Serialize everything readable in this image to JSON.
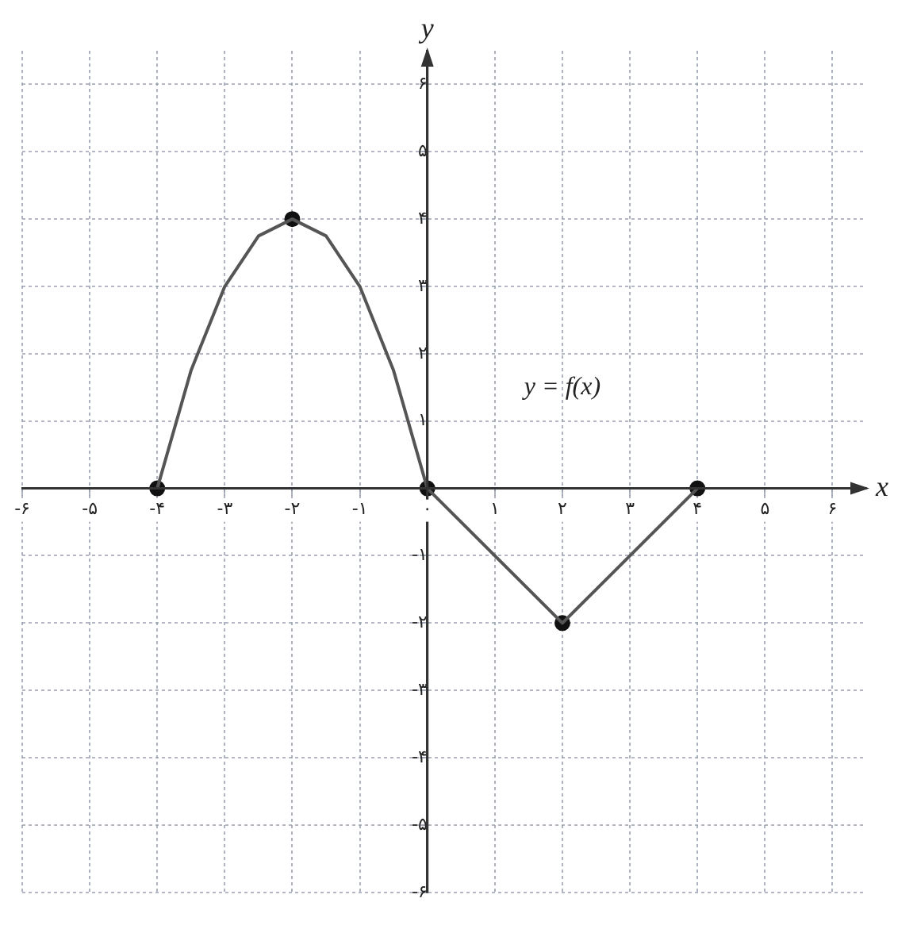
{
  "chart_data": {
    "type": "line",
    "xlabel": "x",
    "ylabel": "y",
    "xlim": [
      -6,
      6.5
    ],
    "ylim": [
      -6,
      6.5
    ],
    "xticks": [
      {
        "value": -6,
        "label": "-۶"
      },
      {
        "value": -5,
        "label": "-۵"
      },
      {
        "value": -4,
        "label": "-۴"
      },
      {
        "value": -3,
        "label": "-۳"
      },
      {
        "value": -2,
        "label": "-۲"
      },
      {
        "value": -1,
        "label": "-۱"
      },
      {
        "value": 0,
        "label": "۰"
      },
      {
        "value": 1,
        "label": "۱"
      },
      {
        "value": 2,
        "label": "۲"
      },
      {
        "value": 3,
        "label": "۳"
      },
      {
        "value": 4,
        "label": "۴"
      },
      {
        "value": 5,
        "label": "۵"
      },
      {
        "value": 6,
        "label": "۶"
      }
    ],
    "yticks": [
      {
        "value": -6,
        "label": "-۶"
      },
      {
        "value": -5,
        "label": "-۵"
      },
      {
        "value": -4,
        "label": "-۴"
      },
      {
        "value": -3,
        "label": "-۳"
      },
      {
        "value": -2,
        "label": "-۲"
      },
      {
        "value": -1,
        "label": "-۱"
      },
      {
        "value": 1,
        "label": "۱"
      },
      {
        "value": 2,
        "label": "۲"
      },
      {
        "value": 3,
        "label": "۳"
      },
      {
        "value": 4,
        "label": "۴"
      },
      {
        "value": 5,
        "label": "۵"
      },
      {
        "value": 6,
        "label": "۶"
      }
    ],
    "grid": true,
    "series": [
      {
        "color": "#555555",
        "marker": "none",
        "line_style": "solid",
        "x": [
          -4,
          -3.5,
          -3,
          -2.5,
          -2,
          -1.5,
          -1,
          -0.5,
          0,
          2,
          4
        ],
        "values": [
          0,
          1.75,
          3,
          3.75,
          4,
          3.75,
          3,
          1.75,
          0,
          -2,
          0
        ]
      },
      {
        "type": "scatter",
        "color": "#111111",
        "marker": "circle",
        "x": [
          -4,
          -2,
          0,
          2,
          4
        ],
        "values": [
          0,
          4,
          0,
          -2,
          0
        ]
      }
    ],
    "annotations": [
      "y = f(x)"
    ]
  }
}
